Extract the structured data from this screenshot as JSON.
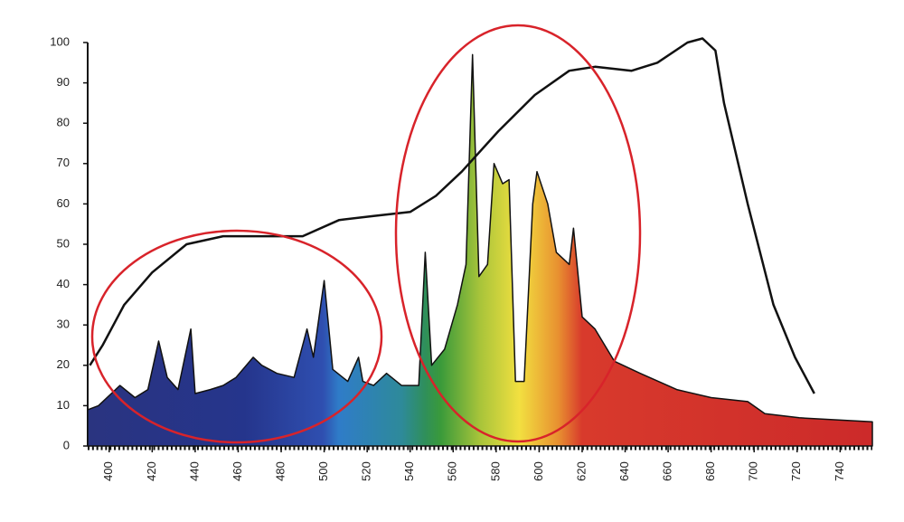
{
  "chart_data": {
    "type": "line",
    "xlim": [
      390,
      755
    ],
    "ylim": [
      0,
      100
    ],
    "xticks": [
      400,
      420,
      440,
      460,
      480,
      500,
      520,
      540,
      560,
      580,
      600,
      620,
      640,
      660,
      680,
      700,
      720,
      740
    ],
    "yticks": [
      0,
      10,
      20,
      30,
      40,
      50,
      60,
      70,
      80,
      90,
      100
    ],
    "series": [
      {
        "fill": true,
        "x": [
          390,
          395,
          405,
          412,
          418,
          423,
          427,
          432,
          438,
          440,
          447,
          453,
          459,
          467,
          471,
          478,
          486,
          492,
          495,
          500,
          504,
          511,
          516,
          518,
          523,
          529,
          536,
          544,
          547,
          550,
          556,
          562,
          566,
          569,
          572,
          576,
          579,
          583,
          586,
          589,
          593,
          597,
          599,
          604,
          608,
          614,
          616,
          620,
          626,
          635,
          647,
          664,
          680,
          697,
          705,
          721,
          755
        ],
        "values": [
          9,
          10,
          15,
          12,
          14,
          26,
          17,
          14,
          29,
          13,
          14,
          15,
          17,
          22,
          20,
          18,
          17,
          29,
          22,
          41,
          19,
          16,
          22,
          16,
          15,
          18,
          15,
          15,
          48,
          20,
          24,
          35,
          45,
          97,
          42,
          45,
          70,
          65,
          66,
          16,
          16,
          60,
          68,
          60,
          48,
          45,
          54,
          32,
          29,
          21,
          18,
          14,
          12,
          11,
          8,
          7,
          6
        ]
      },
      {
        "color": "#111111",
        "x": [
          391,
          397,
          407,
          420,
          436,
          453,
          474,
          490,
          507,
          523,
          540,
          552,
          564,
          581,
          598,
          614,
          626,
          643,
          655,
          669,
          676,
          682,
          686,
          697,
          709,
          719,
          728
        ],
        "values": [
          20,
          25,
          35,
          43,
          50,
          52,
          52,
          52,
          56,
          57,
          58,
          62,
          68,
          78,
          87,
          93,
          94,
          93,
          95,
          100,
          101,
          98,
          85,
          60,
          35,
          22,
          13
        ]
      }
    ]
  }
}
